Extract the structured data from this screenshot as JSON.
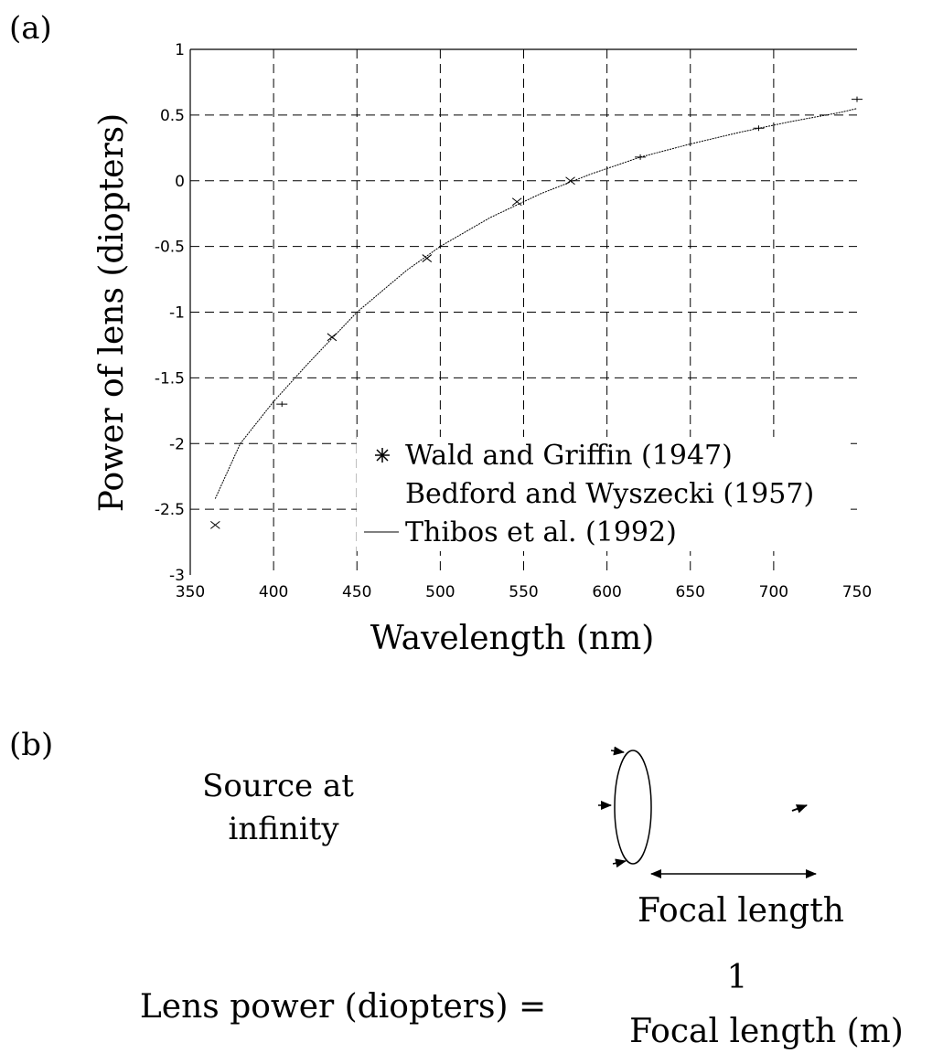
{
  "panels": {
    "a_label": "(a)",
    "b_label": "(b)"
  },
  "chart_data": {
    "type": "scatter",
    "title": "",
    "xlabel": "Wavelength (nm)",
    "ylabel": "Power of lens (diopters)",
    "xlim": [
      350,
      750
    ],
    "ylim": [
      -3,
      1
    ],
    "xticks": [
      350,
      400,
      450,
      500,
      550,
      600,
      650,
      700,
      750
    ],
    "yticks": [
      -3,
      -2.5,
      -2,
      -1.5,
      -1,
      -0.5,
      0,
      0.5,
      1
    ],
    "xtick_labels": [
      "350",
      "400",
      "450",
      "500",
      "550",
      "600",
      "650",
      "700",
      "750"
    ],
    "ytick_labels": [
      "-3",
      "-2.5",
      "-2",
      "-1.5",
      "-1",
      "-0.5",
      "0",
      "0.5",
      "1"
    ],
    "grid": true,
    "legend_position": "lower-right",
    "series": [
      {
        "name": "Wald and Griffin (1947)",
        "marker": "x",
        "x": [
          365,
          435,
          492,
          546,
          578
        ],
        "y": [
          -2.62,
          -1.19,
          -0.59,
          -0.16,
          0.0
        ]
      },
      {
        "name": "Bedford and Wyszecki (1957)",
        "marker": "+",
        "x": [
          405,
          620,
          691,
          750
        ],
        "y": [
          -1.7,
          0.18,
          0.4,
          0.62
        ]
      },
      {
        "name": "Thibos et al. (1992)",
        "type": "line",
        "x": [
          365,
          380,
          400,
          420,
          450,
          480,
          500,
          530,
          560,
          590,
          620,
          650,
          680,
          710,
          740,
          750
        ],
        "y": [
          -2.42,
          -2.0,
          -1.68,
          -1.4,
          -1.0,
          -0.68,
          -0.5,
          -0.28,
          -0.1,
          0.05,
          0.18,
          0.28,
          0.37,
          0.45,
          0.52,
          0.55
        ]
      }
    ]
  },
  "diagram": {
    "source_label_line1": "Source at",
    "source_label_line2": "infinity",
    "focal_length_label": "Focal length",
    "equation_lhs": "Lens power (diopters) =",
    "equation_numerator": "1",
    "equation_denominator": "Focal length (m)"
  }
}
